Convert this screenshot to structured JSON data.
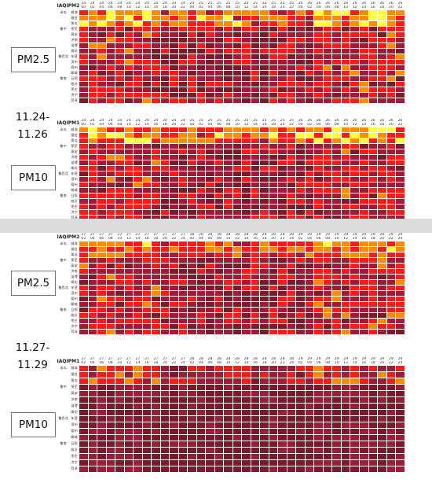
{
  "panels": [
    {
      "date_label": [
        "11.24-",
        "11.26"
      ],
      "tables": [
        {
          "label": "PM2.5",
          "header": "IAQI",
          "sub": "PM2.5",
          "dates": [
            "24",
            "24",
            "24",
            "24",
            "24",
            "24",
            "24",
            "24",
            "24",
            "24",
            "24",
            "24",
            "25",
            "25",
            "25",
            "25",
            "25",
            "25",
            "25",
            "25",
            "25",
            "25",
            "25",
            "25",
            "26",
            "26",
            "26",
            "26",
            "26",
            "26",
            "26",
            "26",
            "26",
            "26",
            "26",
            "26"
          ],
          "hours": [
            "00",
            "02",
            "04",
            "06",
            "08",
            "10",
            "12",
            "14",
            "16",
            "18",
            "20",
            "22",
            "00",
            "02",
            "04",
            "06",
            "08",
            "10",
            "12",
            "14",
            "16",
            "18",
            "20",
            "22",
            "00",
            "02",
            "04",
            "06",
            "08",
            "10",
            "12",
            "14",
            "16",
            "18",
            "20",
            "22"
          ],
          "rows": [
            {
              "region": "半岛",
              "city": "威海"
            },
            {
              "region": "",
              "city": "烟台"
            },
            {
              "region": "",
              "city": "青岛"
            },
            {
              "region": "鲁中",
              "city": "莱芜"
            },
            {
              "region": "",
              "city": "泰安"
            },
            {
              "region": "",
              "city": "济南"
            },
            {
              "region": "",
              "city": "淄博"
            },
            {
              "region": "",
              "city": "潍坊"
            },
            {
              "region": "鲁西北",
              "city": "东营"
            },
            {
              "region": "",
              "city": "滨州"
            },
            {
              "region": "",
              "city": "德州"
            },
            {
              "region": "",
              "city": "聊城"
            },
            {
              "region": "鲁南",
              "city": "日照"
            },
            {
              "region": "",
              "city": "临沂"
            },
            {
              "region": "",
              "city": "枣庄"
            },
            {
              "region": "",
              "city": "济宁"
            },
            {
              "region": "",
              "city": "菏泽"
            }
          ]
        },
        {
          "label": "PM10",
          "header": "IAQI",
          "sub": "PM10",
          "dates": [
            "24",
            "24",
            "24",
            "24",
            "24",
            "24",
            "24",
            "24",
            "24",
            "24",
            "24",
            "24",
            "25",
            "25",
            "25",
            "25",
            "25",
            "25",
            "25",
            "25",
            "25",
            "25",
            "25",
            "25",
            "26",
            "26",
            "26",
            "26",
            "26",
            "26",
            "26",
            "26",
            "26",
            "26",
            "26",
            "26"
          ],
          "hours": [
            "00",
            "02",
            "04",
            "06",
            "08",
            "10",
            "12",
            "14",
            "16",
            "18",
            "20",
            "22",
            "00",
            "02",
            "04",
            "06",
            "08",
            "10",
            "12",
            "14",
            "16",
            "18",
            "20",
            "22",
            "00",
            "02",
            "04",
            "06",
            "08",
            "10",
            "12",
            "14",
            "16",
            "18",
            "20",
            "22"
          ],
          "rows": [
            {
              "region": "半岛",
              "city": "威海"
            },
            {
              "region": "",
              "city": "烟台"
            },
            {
              "region": "",
              "city": "青岛"
            },
            {
              "region": "鲁中",
              "city": "莱芜"
            },
            {
              "region": "",
              "city": "泰安"
            },
            {
              "region": "",
              "city": "济南"
            },
            {
              "region": "",
              "city": "淄博"
            },
            {
              "region": "",
              "city": "潍坊"
            },
            {
              "region": "鲁西北",
              "city": "东营"
            },
            {
              "region": "",
              "city": "滨州"
            },
            {
              "region": "",
              "city": "德州"
            },
            {
              "region": "",
              "city": "聊城"
            },
            {
              "region": "鲁南",
              "city": "日照"
            },
            {
              "region": "",
              "city": "临沂"
            },
            {
              "region": "",
              "city": "枣庄"
            },
            {
              "region": "",
              "city": "济宁"
            },
            {
              "region": "",
              "city": "菏泽"
            }
          ]
        }
      ]
    },
    {
      "date_label": [
        "11.27-",
        "11.29"
      ],
      "tables": [
        {
          "label": "PM2.5",
          "header": "IAQI",
          "sub": "PM2.5",
          "dates": [
            "27",
            "27",
            "27",
            "27",
            "27",
            "27",
            "27",
            "27",
            "27",
            "27",
            "27",
            "27",
            "28",
            "28",
            "28",
            "28",
            "28",
            "28",
            "28",
            "28",
            "28",
            "28",
            "28",
            "28",
            "29",
            "29",
            "29",
            "29",
            "29",
            "29",
            "29",
            "29",
            "29",
            "29",
            "29",
            "29"
          ],
          "hours": [
            "02",
            "04",
            "06",
            "08",
            "10",
            "12",
            "14",
            "16",
            "18",
            "20",
            "22",
            "24",
            "02",
            "04",
            "06",
            "08",
            "10",
            "12",
            "14",
            "16",
            "18",
            "20",
            "22",
            "24",
            "02",
            "04",
            "06",
            "08",
            "10",
            "12",
            "14",
            "16",
            "18",
            "20",
            "22",
            "24"
          ],
          "rows": [
            {
              "region": "半岛",
              "city": "威海"
            },
            {
              "region": "",
              "city": "烟台"
            },
            {
              "region": "",
              "city": "青岛"
            },
            {
              "region": "鲁中",
              "city": "莱芜"
            },
            {
              "region": "",
              "city": "泰安"
            },
            {
              "region": "",
              "city": "济南"
            },
            {
              "region": "",
              "city": "淄博"
            },
            {
              "region": "",
              "city": "潍坊"
            },
            {
              "region": "鲁西北",
              "city": "东营"
            },
            {
              "region": "",
              "city": "滨州"
            },
            {
              "region": "",
              "city": "德州"
            },
            {
              "region": "",
              "city": "聊城"
            },
            {
              "region": "鲁南",
              "city": "日照"
            },
            {
              "region": "",
              "city": "临沂"
            },
            {
              "region": "",
              "city": "枣庄"
            },
            {
              "region": "",
              "city": "济宁"
            },
            {
              "region": "",
              "city": "菏泽"
            }
          ]
        },
        {
          "label": "PM10",
          "header": "IAQI",
          "sub": "PM10",
          "dates": [
            "27",
            "27",
            "27",
            "27",
            "27",
            "27",
            "27",
            "27",
            "27",
            "27",
            "27",
            "27",
            "28",
            "28",
            "28",
            "28",
            "28",
            "28",
            "28",
            "28",
            "28",
            "28",
            "28",
            "28",
            "29",
            "29",
            "29",
            "29",
            "29",
            "29",
            "29",
            "29",
            "29",
            "29",
            "29",
            "29"
          ],
          "hours": [
            "02",
            "04",
            "06",
            "08",
            "10",
            "12",
            "14",
            "16",
            "18",
            "20",
            "22",
            "24",
            "02",
            "04",
            "06",
            "08",
            "10",
            "12",
            "14",
            "16",
            "18",
            "20",
            "22",
            "24",
            "02",
            "04",
            "06",
            "08",
            "10",
            "12",
            "14",
            "16",
            "18",
            "20",
            "22",
            "24"
          ],
          "rows": [
            {
              "region": "半岛",
              "city": "威海"
            },
            {
              "region": "",
              "city": "烟台"
            },
            {
              "region": "",
              "city": "青岛"
            },
            {
              "region": "鲁中",
              "city": "莱芜"
            },
            {
              "region": "",
              "city": "泰安"
            },
            {
              "region": "",
              "city": "济南"
            },
            {
              "region": "",
              "city": "淄博"
            },
            {
              "region": "",
              "city": "潍坊"
            },
            {
              "region": "鲁西北",
              "city": "东营"
            },
            {
              "region": "",
              "city": "滨州"
            },
            {
              "region": "",
              "city": "德州"
            },
            {
              "region": "",
              "city": "聊城"
            },
            {
              "region": "鲁南",
              "city": "日照"
            },
            {
              "region": "",
              "city": "临沂"
            },
            {
              "region": "",
              "city": "枣庄"
            },
            {
              "region": "",
              "city": "济宁"
            },
            {
              "region": "",
              "city": "菏泽"
            }
          ]
        }
      ]
    }
  ],
  "color_scale": {
    "good": "#39b54a",
    "moderate": "#ffff3d",
    "light": "#ff8c00",
    "medium": "#ff1a1a",
    "heavy": "#a31a36",
    "severe": "#7a1a2a"
  }
}
